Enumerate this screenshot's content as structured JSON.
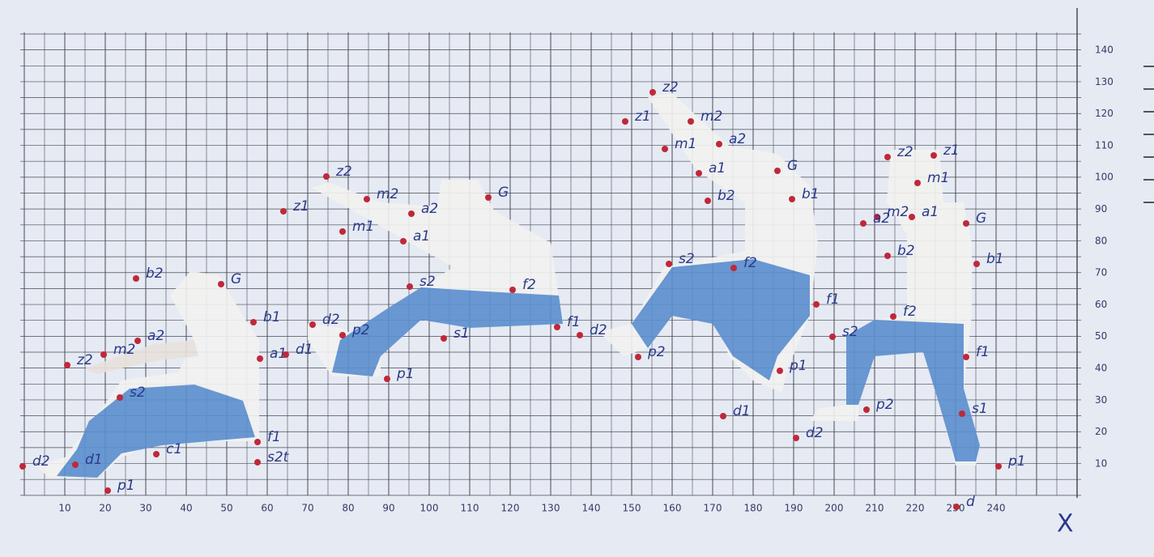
{
  "grid": {
    "x_labels": [
      "10",
      "20",
      "30",
      "40",
      "50",
      "60",
      "70",
      "80",
      "90",
      "100",
      "110",
      "120",
      "130",
      "140",
      "150",
      "160",
      "170",
      "180",
      "190",
      "200",
      "210",
      "220",
      "230",
      "240"
    ],
    "y_labels": [
      "140",
      "130",
      "120",
      "110",
      "100",
      "90",
      "80",
      "70",
      "60",
      "50",
      "40",
      "30",
      "20",
      "10"
    ],
    "x_axis_title": "X"
  },
  "figures": [
    {
      "labels": [
        "b2",
        "G",
        "b1",
        "a1",
        "a2",
        "m2",
        "z2",
        "s2",
        "f1",
        "c1",
        "s2t",
        "d2",
        "d1",
        "p1"
      ]
    },
    {
      "labels": [
        "z2",
        "z1",
        "m2",
        "m1",
        "a2",
        "a1",
        "G",
        "s2",
        "f2",
        "s1",
        "f1",
        "d2",
        "d1",
        "p2",
        "p1"
      ]
    },
    {
      "labels": [
        "z2",
        "z1",
        "m2",
        "m1",
        "a2",
        "a1",
        "G",
        "b2",
        "b1",
        "s2",
        "f2",
        "f1",
        "d2",
        "p2",
        "p1",
        "d1"
      ]
    },
    {
      "labels": [
        "z2",
        "z1",
        "m2",
        "m1",
        "a2",
        "a1",
        "G",
        "b2",
        "b1",
        "f2",
        "s2",
        "f1",
        "p2",
        "s1",
        "d2",
        "p1",
        "d"
      ]
    }
  ]
}
